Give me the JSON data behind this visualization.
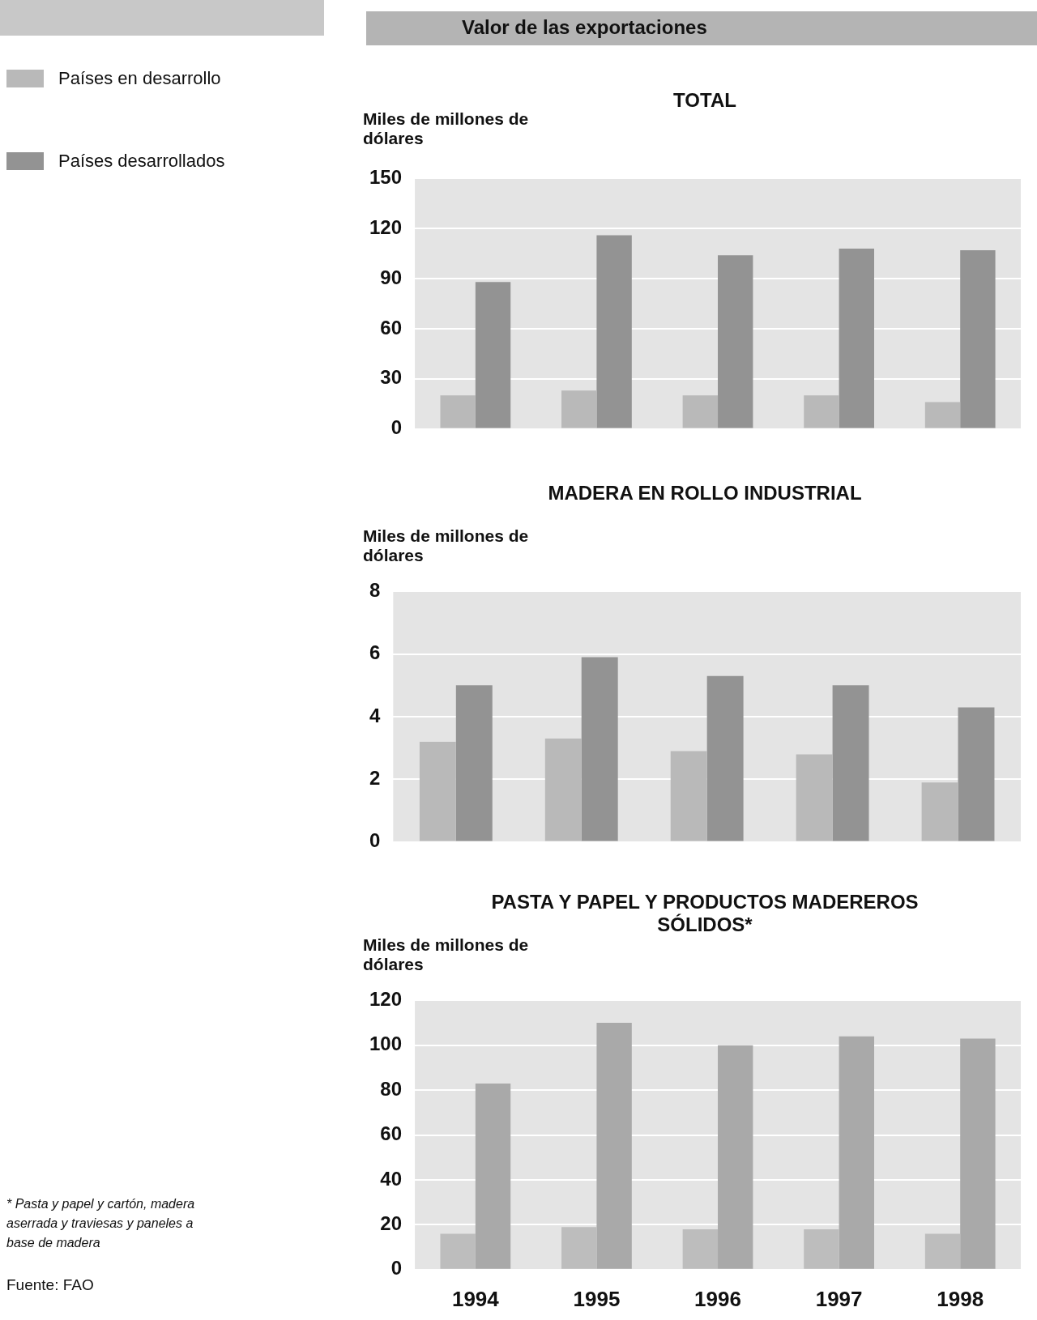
{
  "chart_data": [
    {
      "type": "bar",
      "title": "Valor de las exportaciones",
      "subtitle": "TOTAL",
      "ylabel": "Miles de millones de dólares",
      "categories": [
        "1994",
        "1995",
        "1996",
        "1997",
        "1998"
      ],
      "series": [
        {
          "name": "Países en desarrollo",
          "color": "#b9b9b9",
          "values": [
            20,
            23,
            20,
            20,
            16
          ]
        },
        {
          "name": "Países desarrollados",
          "color": "#939393",
          "values": [
            88,
            116,
            104,
            108,
            107
          ]
        }
      ],
      "ylim": [
        0,
        150
      ],
      "yticks": [
        0,
        30,
        60,
        90,
        120,
        150
      ],
      "grid": "y",
      "legend": "left",
      "tick_labels": "y"
    },
    {
      "type": "bar",
      "title": "MADERA EN ROLLO INDUSTRIAL",
      "ylabel": "Miles de millones de dólares",
      "categories": [
        "1994",
        "1995",
        "1996",
        "1997",
        "1998"
      ],
      "series": [
        {
          "color": "#b9b9b9",
          "values": [
            3.2,
            3.3,
            2.9,
            2.8,
            1.9
          ]
        },
        {
          "color": "#939393",
          "values": [
            5.0,
            5.9,
            5.3,
            5.0,
            4.3
          ]
        }
      ],
      "ylim": [
        0,
        8
      ],
      "yticks": [
        0,
        2,
        4,
        6,
        8
      ],
      "grid": "y",
      "tick_labels": "y"
    },
    {
      "type": "bar",
      "title": "PASTA Y PAPEL Y PRODUCTOS MADEREROS SÓLIDOS*",
      "ylabel": "Miles de millones de dólares",
      "categories": [
        "1994",
        "1995",
        "1996",
        "1997",
        "1998"
      ],
      "series": [
        {
          "color": "#bdbdbd",
          "values": [
            16,
            19,
            18,
            18,
            16
          ]
        },
        {
          "color": "#a9a9a9",
          "values": [
            83,
            110,
            100,
            104,
            103
          ]
        }
      ],
      "ylim": [
        0,
        120
      ],
      "yticks": [
        0,
        20,
        40,
        60,
        80,
        100,
        120
      ],
      "grid": "y",
      "annotations": [
        "* Pasta y papel y cartón, madera aserrada y traviesas y paneles a base de madera",
        "Fuente: FAO"
      ]
    }
  ]
}
